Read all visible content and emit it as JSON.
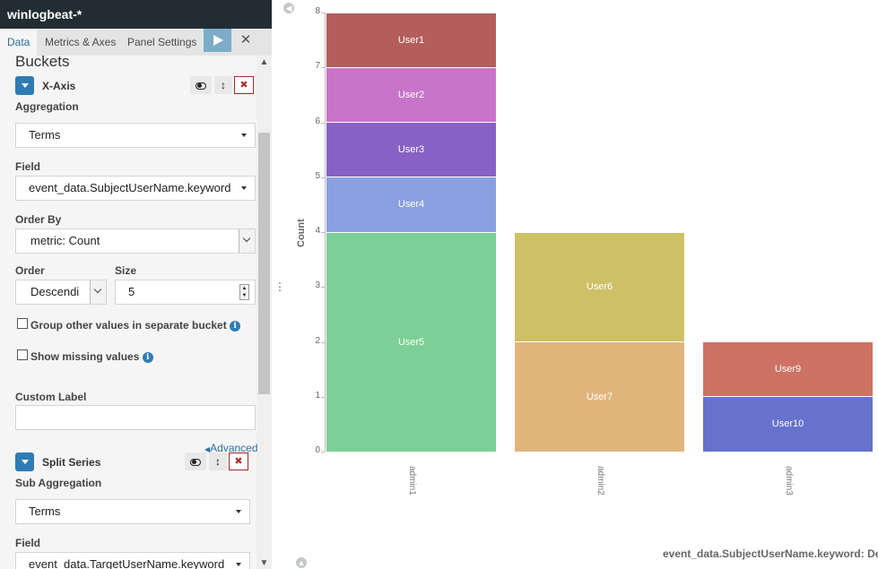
{
  "title": "winlogbeat-*",
  "tabs": [
    {
      "label": "Data"
    },
    {
      "label": "Metrics & Axes"
    },
    {
      "label": "Panel Settings"
    }
  ],
  "sidebar": {
    "buckets_heading": "Buckets",
    "xaxis": {
      "title": "X-Axis",
      "aggregation_label": "Aggregation",
      "aggregation_value": "Terms",
      "field_label": "Field",
      "field_value": "event_data.SubjectUserName.keyword",
      "order_by_label": "Order By",
      "order_by_value": "metric: Count",
      "order_label": "Order",
      "order_value": "Descendi",
      "size_label": "Size",
      "size_value": "5",
      "group_other_label": "Group other values in separate bucket",
      "show_missing_label": "Show missing values",
      "custom_label_label": "Custom Label",
      "custom_label_value": ""
    },
    "advanced_link": "Advanced",
    "split": {
      "title": "Split Series",
      "sub_aggregation_label": "Sub Aggregation",
      "sub_aggregation_value": "Terms",
      "field_label": "Field",
      "field_value": "event_data.TargetUserName.keyword"
    }
  },
  "colors": {
    "header_bg": "#222d33",
    "accent": "#2f7cb5",
    "run_button": "#7bacc8"
  },
  "icons": {
    "run": "play-icon",
    "discard": "close-icon",
    "toggle": "toggle-icon",
    "move": "up-down-arrow-icon",
    "remove": "x-icon",
    "info": "info-icon"
  },
  "chart_data": {
    "type": "bar",
    "stacked": true,
    "categories": [
      "admin1",
      "admin2",
      "admin3"
    ],
    "series": [
      {
        "name": "User1",
        "values": [
          1,
          0,
          0
        ],
        "color": "#b35e5b"
      },
      {
        "name": "User2",
        "values": [
          1,
          0,
          0
        ],
        "color": "#c875c9"
      },
      {
        "name": "User3",
        "values": [
          1,
          0,
          0
        ],
        "color": "#8762c4"
      },
      {
        "name": "User4",
        "values": [
          1,
          0,
          0
        ],
        "color": "#8b9fe0"
      },
      {
        "name": "User5",
        "values": [
          4,
          0,
          0
        ],
        "color": "#7ccf96"
      },
      {
        "name": "User6",
        "values": [
          0,
          2,
          0
        ],
        "color": "#cdc066"
      },
      {
        "name": "User7",
        "values": [
          0,
          2,
          0
        ],
        "color": "#e1b47c"
      },
      {
        "name": "User9",
        "values": [
          0,
          0,
          1
        ],
        "color": "#cd7265"
      },
      {
        "name": "User10",
        "values": [
          0,
          0,
          1
        ],
        "color": "#6672cc"
      }
    ],
    "ylabel": "Count",
    "xlabel": "event_data.SubjectUserName.keyword: Desc",
    "ylim": [
      0,
      8
    ],
    "yticks": [
      "0",
      "1",
      "2",
      "3",
      "4",
      "5",
      "6",
      "7",
      "8"
    ],
    "grid": false,
    "legend": "none"
  }
}
